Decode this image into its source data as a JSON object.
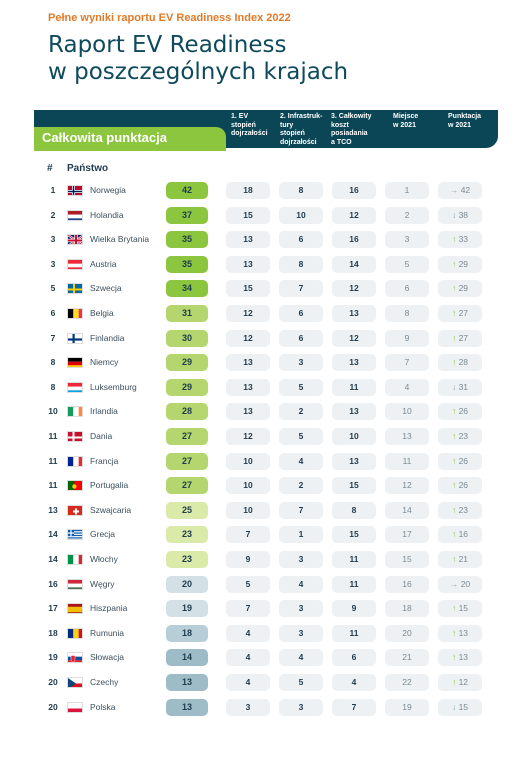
{
  "kicker": "Pełne wyniki raportu EV Readiness Index 2022",
  "title_line1": "Raport EV Readiness",
  "title_line2": "w poszczególnych krajach",
  "header": {
    "total_label": "Całkowita punktacja",
    "col1": [
      "1. EV",
      "stopień",
      "dojrzałości"
    ],
    "col2": [
      "2. Infrastruk-",
      "tury",
      "stopień",
      "dojrzałości"
    ],
    "col3": [
      "3. Całkowity",
      "koszt",
      "posiadania",
      "a TCO"
    ],
    "col4": [
      "Miejsce",
      "w 2021"
    ],
    "col5": [
      "Punktacja",
      "w 2021"
    ],
    "rank_label": "#",
    "country_label": "Państwo"
  },
  "colors": {
    "green_dark": "#8cc63f",
    "green_mid": "#b5d66f",
    "green_light": "#d9eaa9",
    "grey_blue_light": "#d3e1e7",
    "grey_blue": "#b7ced8",
    "grey_blue_dark": "#9dbcc8",
    "header_dark": "#0b4656",
    "accent_orange": "#e07b2a"
  },
  "rows": [
    {
      "rank": "1",
      "flag": "norway-flag",
      "country": "Norwegia",
      "total": "42",
      "ev": "18",
      "infra": "8",
      "tco": "16",
      "place2021": "1",
      "arrow": "→",
      "score2021": "42"
    },
    {
      "rank": "2",
      "flag": "netherlands-flag",
      "country": "Holandia",
      "total": "37",
      "ev": "15",
      "infra": "10",
      "tco": "12",
      "place2021": "2",
      "arrow": "↓",
      "score2021": "38"
    },
    {
      "rank": "3",
      "flag": "uk-flag",
      "country": "Wielka Brytania",
      "total": "35",
      "ev": "13",
      "infra": "6",
      "tco": "16",
      "place2021": "3",
      "arrow": "↑",
      "score2021": "33"
    },
    {
      "rank": "3",
      "flag": "austria-flag",
      "country": "Austria",
      "total": "35",
      "ev": "13",
      "infra": "8",
      "tco": "14",
      "place2021": "5",
      "arrow": "↑",
      "score2021": "29"
    },
    {
      "rank": "5",
      "flag": "sweden-flag",
      "country": "Szwecja",
      "total": "34",
      "ev": "15",
      "infra": "7",
      "tco": "12",
      "place2021": "6",
      "arrow": "↑",
      "score2021": "29"
    },
    {
      "rank": "6",
      "flag": "belgium-flag",
      "country": "Belgia",
      "total": "31",
      "ev": "12",
      "infra": "6",
      "tco": "13",
      "place2021": "8",
      "arrow": "↑",
      "score2021": "27"
    },
    {
      "rank": "7",
      "flag": "finland-flag",
      "country": "Finlandia",
      "total": "30",
      "ev": "12",
      "infra": "6",
      "tco": "12",
      "place2021": "9",
      "arrow": "↑",
      "score2021": "27"
    },
    {
      "rank": "8",
      "flag": "germany-flag",
      "country": "Niemcy",
      "total": "29",
      "ev": "13",
      "infra": "3",
      "tco": "13",
      "place2021": "7",
      "arrow": "↑",
      "score2021": "28"
    },
    {
      "rank": "8",
      "flag": "luxembourg-flag",
      "country": "Luksemburg",
      "total": "29",
      "ev": "13",
      "infra": "5",
      "tco": "11",
      "place2021": "4",
      "arrow": "↓",
      "score2021": "31"
    },
    {
      "rank": "10",
      "flag": "ireland-flag",
      "country": "Irlandia",
      "total": "28",
      "ev": "13",
      "infra": "2",
      "tco": "13",
      "place2021": "10",
      "arrow": "↑",
      "score2021": "26"
    },
    {
      "rank": "11",
      "flag": "denmark-flag",
      "country": "Dania",
      "total": "27",
      "ev": "12",
      "infra": "5",
      "tco": "10",
      "place2021": "13",
      "arrow": "↑",
      "score2021": "23"
    },
    {
      "rank": "11",
      "flag": "france-flag",
      "country": "Francja",
      "total": "27",
      "ev": "10",
      "infra": "4",
      "tco": "13",
      "place2021": "11",
      "arrow": "↑",
      "score2021": "26"
    },
    {
      "rank": "11",
      "flag": "portugal-flag",
      "country": "Portugalia",
      "total": "27",
      "ev": "10",
      "infra": "2",
      "tco": "15",
      "place2021": "12",
      "arrow": "↑",
      "score2021": "26"
    },
    {
      "rank": "13",
      "flag": "switzerland-flag",
      "country": "Szwajcaria",
      "total": "25",
      "ev": "10",
      "infra": "7",
      "tco": "8",
      "place2021": "14",
      "arrow": "↑",
      "score2021": "23"
    },
    {
      "rank": "14",
      "flag": "greece-flag",
      "country": "Grecja",
      "total": "23",
      "ev": "7",
      "infra": "1",
      "tco": "15",
      "place2021": "17",
      "arrow": "↑",
      "score2021": "16"
    },
    {
      "rank": "14",
      "flag": "italy-flag",
      "country": "Włochy",
      "total": "23",
      "ev": "9",
      "infra": "3",
      "tco": "11",
      "place2021": "15",
      "arrow": "↑",
      "score2021": "21"
    },
    {
      "rank": "16",
      "flag": "hungary-flag",
      "country": "Węgry",
      "total": "20",
      "ev": "5",
      "infra": "4",
      "tco": "11",
      "place2021": "16",
      "arrow": "→",
      "score2021": "20"
    },
    {
      "rank": "17",
      "flag": "spain-flag",
      "country": "Hiszpania",
      "total": "19",
      "ev": "7",
      "infra": "3",
      "tco": "9",
      "place2021": "18",
      "arrow": "↑",
      "score2021": "15"
    },
    {
      "rank": "18",
      "flag": "romania-flag",
      "country": "Rumunia",
      "total": "18",
      "ev": "4",
      "infra": "3",
      "tco": "11",
      "place2021": "20",
      "arrow": "↑",
      "score2021": "13"
    },
    {
      "rank": "19",
      "flag": "slovakia-flag",
      "country": "Słowacja",
      "total": "14",
      "ev": "4",
      "infra": "4",
      "tco": "6",
      "place2021": "21",
      "arrow": "↑",
      "score2021": "13"
    },
    {
      "rank": "20",
      "flag": "czechia-flag",
      "country": "Czechy",
      "total": "13",
      "ev": "4",
      "infra": "5",
      "tco": "4",
      "place2021": "22",
      "arrow": "↑",
      "score2021": "12"
    },
    {
      "rank": "20",
      "flag": "poland-flag",
      "country": "Polska",
      "total": "13",
      "ev": "3",
      "infra": "3",
      "tco": "7",
      "place2021": "19",
      "arrow": "↓",
      "score2021": "15"
    }
  ]
}
